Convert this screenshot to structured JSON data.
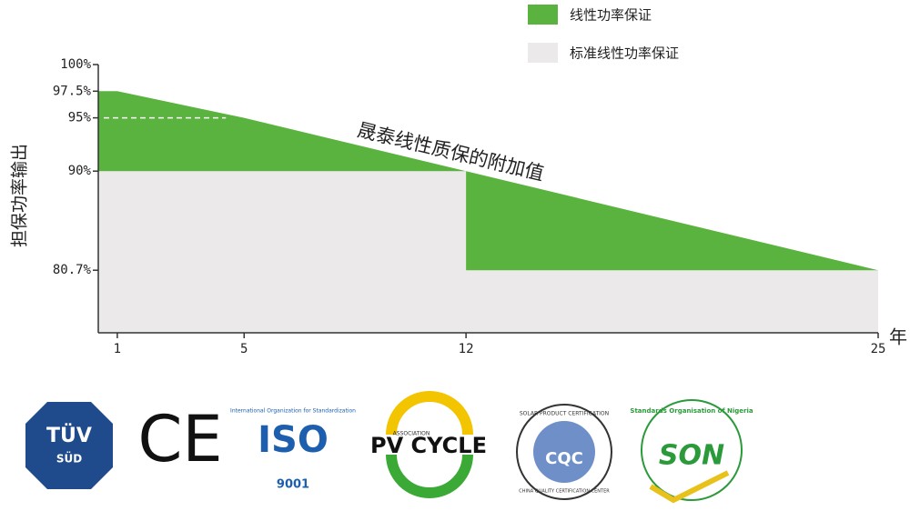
{
  "chart_data": {
    "type": "warranty-area",
    "y_label": "担保功率输出",
    "x_label": "年",
    "annotation": "晟泰线性质保的附加值",
    "xlim": [
      0.4,
      25
    ],
    "xticks": [
      1,
      5,
      12,
      25
    ],
    "ylim": [
      75,
      100
    ],
    "yticks": [
      {
        "value": 100,
        "label": "100%"
      },
      {
        "value": 97.5,
        "label": "97.5%"
      },
      {
        "value": 95,
        "label": "95%"
      },
      {
        "value": 90,
        "label": "90%"
      },
      {
        "value": 80.7,
        "label": "80.7%"
      }
    ],
    "series": [
      {
        "name": "线性功率保证",
        "color": "#5bb33f",
        "x": [
          1,
          5,
          25
        ],
        "values": [
          97.5,
          95,
          80.7
        ]
      },
      {
        "name": "标准线性功率保证",
        "color": "#ebe9ea",
        "step": true,
        "x": [
          1,
          12,
          25
        ],
        "values": [
          90,
          80.7,
          80.7
        ]
      }
    ]
  },
  "logos": {
    "tuv": "TÜV",
    "sud": "SÜD",
    "ce": "CE",
    "iso_org": "International Organization for Standardization",
    "iso": "ISO",
    "iso_num": "9001",
    "pv_assoc": "ASSOCIATION",
    "pv": "PV CYCLE",
    "cqc_top": "SOLAR PRODUCT CERTIFICATION",
    "cqc": "CQC",
    "cqc_bottom": "CHINA QUALITY CERTIFICATION CENTER",
    "son_org": "Standards Organisation of Nigeria",
    "son": "SON"
  }
}
